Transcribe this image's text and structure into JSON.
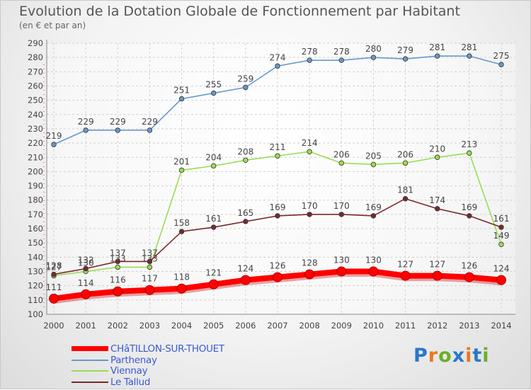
{
  "chart_data": {
    "type": "line",
    "title": "Evolution de la Dotation Globale de Fonctionnement par Habitant",
    "subtitle": "(en € et par an)",
    "xlabel": "",
    "ylabel": "",
    "categories": [
      "2000",
      "2001",
      "2002",
      "2003",
      "2004",
      "2005",
      "2006",
      "2007",
      "2008",
      "2009",
      "2010",
      "2011",
      "2012",
      "2013",
      "2014"
    ],
    "ylim": [
      100,
      290
    ],
    "yticks": [
      100,
      110,
      120,
      130,
      140,
      150,
      160,
      170,
      180,
      190,
      200,
      210,
      220,
      230,
      240,
      250,
      260,
      270,
      280,
      290
    ],
    "grid": true,
    "legend_position": "bottom-left",
    "series": [
      {
        "name": "CHâTILLON-SUR-THOUET",
        "color": "#ff0000",
        "emphasis": true,
        "values": [
          111,
          114,
          116,
          117,
          118,
          121,
          124,
          126,
          128,
          130,
          130,
          127,
          127,
          126,
          124
        ]
      },
      {
        "name": "Parthenay",
        "color": "#6699cc",
        "values": [
          219,
          229,
          229,
          229,
          251,
          255,
          259,
          274,
          278,
          278,
          280,
          279,
          281,
          281,
          275
        ]
      },
      {
        "name": "Viennay",
        "color": "#99dd55",
        "values": [
          127,
          130,
          133,
          133,
          201,
          204,
          208,
          211,
          214,
          206,
          205,
          206,
          210,
          213,
          149
        ]
      },
      {
        "name": "Le Tallud",
        "color": "#7a2a2a",
        "values": [
          128,
          132,
          137,
          137,
          158,
          161,
          165,
          169,
          170,
          170,
          169,
          181,
          174,
          169,
          161
        ]
      }
    ]
  },
  "logo": {
    "letters": [
      {
        "ch": "P",
        "color": "#2a77c9"
      },
      {
        "ch": "r",
        "color": "#e8791e"
      },
      {
        "ch": "o",
        "color": "#6cae2a"
      },
      {
        "ch": "x",
        "color": "#2a77c9"
      },
      {
        "ch": "i",
        "color": "#e8791e"
      },
      {
        "ch": "t",
        "color": "#2a77c9"
      },
      {
        "ch": "i",
        "color": "#6cae2a"
      }
    ]
  }
}
